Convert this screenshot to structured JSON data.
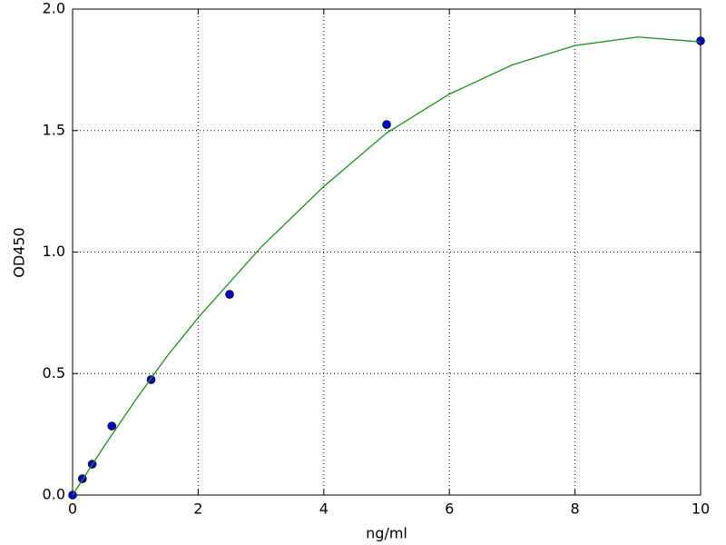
{
  "chart_data": {
    "type": "scatter",
    "x_label": "ng/ml",
    "y_label": "OD450",
    "xlim": [
      0,
      10
    ],
    "ylim": [
      0,
      2.0
    ],
    "xticks": [
      0,
      2,
      4,
      6,
      8,
      10
    ],
    "yticks": [
      {
        "value": 0,
        "label": "0.0"
      },
      0.5,
      {
        "value": 1,
        "label": "1.0"
      },
      1.5,
      {
        "value": 2,
        "label": "2.0"
      }
    ],
    "grid": true,
    "series": [
      {
        "style": "markers",
        "color": "#0000bf",
        "x": [
          0,
          0.156,
          0.3125,
          0.625,
          1.25,
          2.5,
          5,
          10
        ],
        "values": [
          0,
          0.067,
          0.127,
          0.284,
          0.475,
          0.826,
          1.525,
          1.869
        ]
      },
      {
        "style": "line",
        "color": "#228b22",
        "x": [
          0,
          0.5,
          1,
          1.5,
          2,
          3,
          4,
          5,
          6,
          7,
          8,
          9,
          10
        ],
        "values": [
          0,
          0.2,
          0.39,
          0.57,
          0.73,
          1.02,
          1.27,
          1.49,
          1.65,
          1.77,
          1.85,
          1.885,
          1.865
        ]
      }
    ]
  }
}
